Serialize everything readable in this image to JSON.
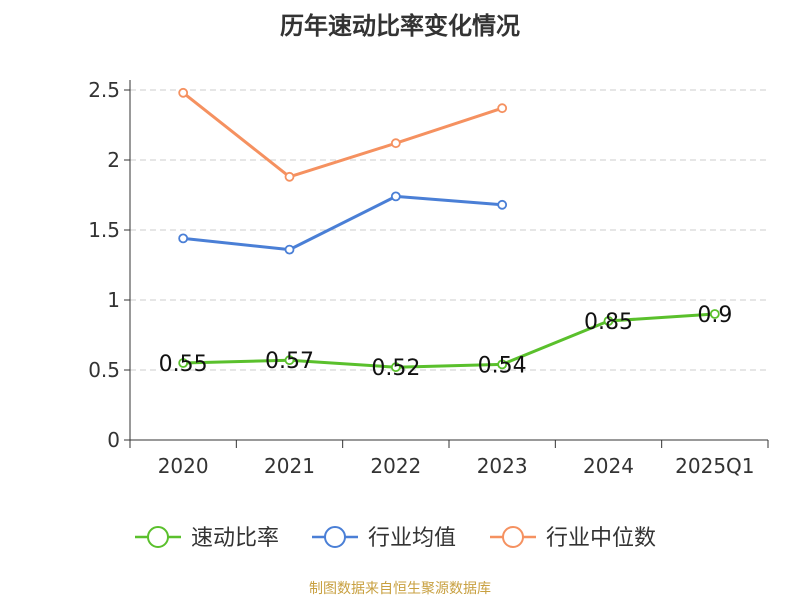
{
  "chart_data": {
    "type": "line",
    "title": "历年速动比率变化情况",
    "categories": [
      "2020",
      "2021",
      "2022",
      "2023",
      "2024",
      "2025Q1"
    ],
    "ylim": [
      0,
      2.5
    ],
    "yticks": [
      "0",
      "0.5",
      "1",
      "1.5",
      "2",
      "2.5"
    ],
    "grid": true,
    "legend_position": "bottom",
    "series": [
      {
        "name": "速动比率",
        "color": "#5ac02c",
        "values": [
          0.55,
          0.57,
          0.52,
          0.54,
          0.85,
          0.9
        ],
        "labels": [
          "0.55",
          "0.57",
          "0.52",
          "0.54",
          "0.85",
          "0.9"
        ]
      },
      {
        "name": "行业均值",
        "color": "#4a7fd6",
        "values": [
          1.44,
          1.36,
          1.74,
          1.68,
          null,
          null
        ]
      },
      {
        "name": "行业中位数",
        "color": "#f59160",
        "values": [
          2.48,
          1.88,
          2.12,
          2.37,
          null,
          null
        ]
      }
    ]
  },
  "footer": {
    "source": "制图数据来自恒生聚源数据库"
  }
}
